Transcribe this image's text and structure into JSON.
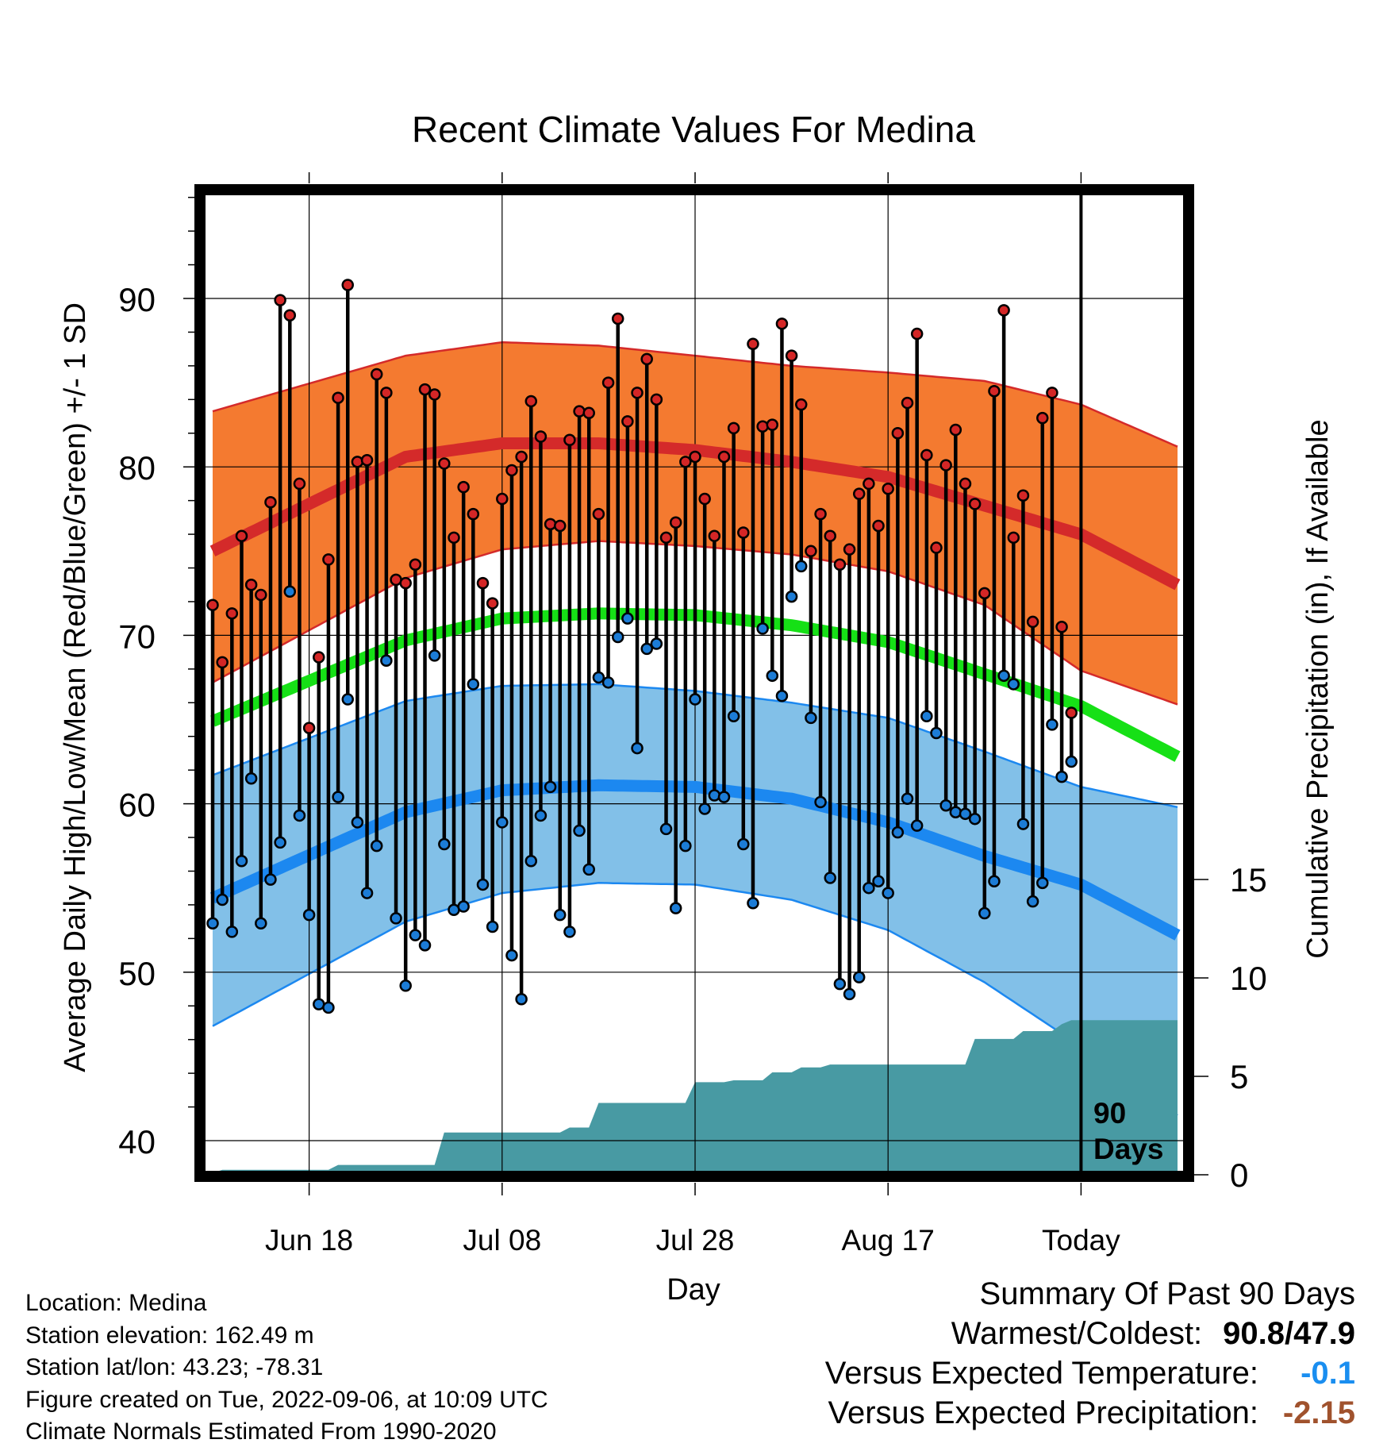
{
  "chart_data": {
    "type": "line",
    "title": "Recent Climate Values For Medina",
    "xlabel": "Day",
    "ylabel": "Average Daily High/Low/Mean (Red/Blue/Green) +/- 1 SD",
    "y2label": "Cumulative Precipitation (in), If Available",
    "day_range": [
      1,
      101
    ],
    "today_day": 91,
    "x_ticks": [
      {
        "day": 11,
        "label": "Jun 18"
      },
      {
        "day": 31,
        "label": "Jul 08"
      },
      {
        "day": 51,
        "label": "Jul 28"
      },
      {
        "day": 71,
        "label": "Aug 17"
      },
      {
        "day": 91,
        "label": "Today"
      }
    ],
    "ylim": [
      38.4,
      97
    ],
    "y_ticks": [
      40,
      50,
      60,
      70,
      80,
      90
    ],
    "y2lim": [
      0,
      15
    ],
    "y2_ticks": [
      0,
      5,
      10,
      15
    ],
    "today_label": [
      "90",
      "Days"
    ],
    "grid": true,
    "normals": {
      "days": [
        1,
        21,
        31,
        41,
        51,
        61,
        71,
        81,
        91,
        101
      ],
      "high_mean": [
        75.0,
        80.6,
        81.4,
        81.4,
        81.0,
        80.3,
        79.4,
        77.7,
        76.0,
        73.0
      ],
      "high_upper": [
        83.3,
        86.6,
        87.4,
        87.2,
        86.6,
        86.0,
        85.6,
        85.1,
        83.7,
        81.2
      ],
      "high_lower": [
        67.2,
        73.4,
        75.1,
        75.6,
        75.3,
        74.8,
        73.8,
        71.8,
        67.9,
        65.9
      ],
      "mean": [
        64.9,
        69.7,
        71.0,
        71.3,
        71.2,
        70.6,
        69.6,
        67.7,
        65.8,
        62.8
      ],
      "low_mean": [
        54.4,
        59.5,
        60.8,
        61.1,
        61.0,
        60.3,
        58.9,
        56.9,
        55.2,
        52.2
      ],
      "low_upper": [
        61.7,
        66.1,
        67.0,
        67.1,
        66.7,
        66.0,
        65.1,
        63.1,
        61.0,
        59.8
      ],
      "low_lower": [
        46.8,
        53.0,
        54.7,
        55.3,
        55.2,
        54.3,
        52.5,
        49.4,
        45.6,
        41.5
      ]
    },
    "daily_highs": [
      71.8,
      68.4,
      71.3,
      75.9,
      73.0,
      72.4,
      77.9,
      89.9,
      89.0,
      79.0,
      64.5,
      68.7,
      74.5,
      84.1,
      90.8,
      80.3,
      80.4,
      85.5,
      84.4,
      73.3,
      73.1,
      74.2,
      84.6,
      84.3,
      80.2,
      75.8,
      78.8,
      77.2,
      73.1,
      71.9,
      78.1,
      79.8,
      80.6,
      83.9,
      81.8,
      76.6,
      76.5,
      81.6,
      83.3,
      83.2,
      77.2,
      85.0,
      88.8,
      82.7,
      84.4,
      86.4,
      84.0,
      75.8,
      76.7,
      80.3,
      80.6,
      78.1,
      75.9,
      80.6,
      82.3,
      76.1,
      87.3,
      82.4,
      82.5,
      88.5,
      86.6,
      83.7,
      75.0,
      77.2,
      75.9,
      74.2,
      75.1,
      78.4,
      79.0,
      76.5,
      78.7,
      82.0,
      83.8,
      87.9,
      80.7,
      75.2,
      80.1,
      82.2,
      79.0,
      77.8,
      72.5,
      84.5,
      89.3,
      75.8,
      78.3,
      70.8,
      82.9,
      84.4,
      70.5,
      65.4
    ],
    "daily_lows": [
      52.9,
      54.3,
      52.4,
      56.6,
      61.5,
      52.9,
      55.5,
      57.7,
      72.6,
      59.3,
      53.4,
      48.1,
      47.9,
      60.4,
      66.2,
      58.9,
      54.7,
      57.5,
      68.5,
      53.2,
      49.2,
      52.2,
      51.6,
      68.8,
      57.6,
      53.7,
      53.9,
      67.1,
      55.2,
      52.7,
      58.9,
      51.0,
      48.4,
      56.6,
      59.3,
      61.0,
      53.4,
      52.4,
      58.4,
      56.1,
      67.5,
      67.2,
      69.9,
      71.0,
      63.3,
      69.2,
      69.5,
      58.5,
      53.8,
      57.5,
      66.2,
      59.7,
      60.5,
      60.4,
      65.2,
      57.6,
      54.1,
      70.4,
      67.6,
      66.4,
      72.3,
      74.1,
      65.1,
      60.1,
      55.6,
      49.3,
      48.7,
      49.7,
      55.0,
      55.4,
      54.7,
      58.3,
      60.3,
      58.7,
      65.2,
      64.2,
      59.9,
      59.5,
      59.4,
      59.1,
      53.5,
      55.4,
      67.6,
      67.1,
      58.8,
      54.2,
      55.3,
      64.7,
      61.6,
      62.5
    ],
    "cumulative_precip": {
      "days": [
        1,
        2,
        13,
        14,
        24,
        25,
        37,
        38,
        40,
        41,
        50,
        51,
        54,
        55,
        58,
        59,
        61,
        62,
        64,
        65,
        79,
        80,
        84,
        85,
        88,
        89,
        90,
        101
      ],
      "values": [
        0.1,
        0.25,
        0.25,
        0.5,
        0.5,
        2.15,
        2.15,
        2.4,
        2.4,
        3.65,
        3.65,
        4.7,
        4.7,
        4.8,
        4.8,
        5.2,
        5.2,
        5.45,
        5.45,
        5.6,
        5.6,
        6.9,
        6.9,
        7.3,
        7.3,
        7.65,
        7.85,
        7.85
      ]
    }
  },
  "station_info": [
    "Location: Medina",
    "Station elevation: 162.49 m",
    "Station lat/lon: 43.23; -78.31",
    "Figure created on Tue, 2022-09-06, at 10:09 UTC",
    "Climate Normals Estimated From 1990-2020"
  ],
  "summary": {
    "heading": "Summary Of Past 90 Days",
    "warmest_label": "Warmest/Coldest:",
    "warmest_value": "90.8/47.9",
    "temp_label": "Versus Expected Temperature:",
    "temp_value": "-0.1",
    "precip_label": "Versus Expected Precipitation:",
    "precip_value": "-2.15"
  },
  "colors": {
    "high_band": "#f47a30",
    "high_mean": "#d42a2a",
    "mean_line": "#16e016",
    "low_band": "#82c0e8",
    "low_mean": "#1c88f0",
    "precip_fill": "#489aa3",
    "high_marker": "#d42626",
    "low_marker": "#1c7cd6",
    "temp_value": "#1a8ef0",
    "precip_value": "#a0522d"
  }
}
